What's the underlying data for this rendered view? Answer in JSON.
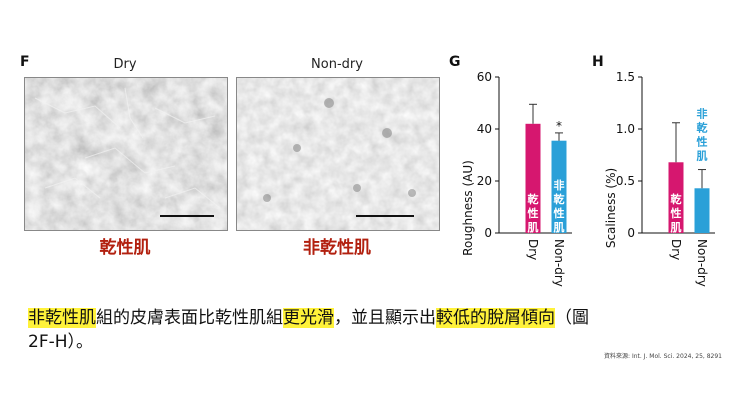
{
  "panels": {
    "f": {
      "letter": "F",
      "left_title": "Dry",
      "right_title": "Non-dry",
      "left_label": "乾性肌",
      "right_label": "非乾性肌"
    },
    "g": {
      "letter": "G"
    },
    "h": {
      "letter": "H"
    }
  },
  "colors": {
    "dry": "#d6176f",
    "nondry": "#2aa0d8",
    "label_red": "#b2200f",
    "highlight": "#fff23a"
  },
  "chart_data": [
    {
      "type": "bar",
      "panel": "G",
      "ylabel": "Roughness (AU)",
      "ylim": [
        0,
        60
      ],
      "yticks": [
        "0",
        "20",
        "40",
        "60"
      ],
      "categories": [
        "Dry",
        "Non-dry"
      ],
      "values": [
        42,
        35.5
      ],
      "errors": [
        7.5,
        3
      ],
      "bar_labels": [
        "乾性肌",
        "非乾性肌"
      ],
      "annotations": [
        "*"
      ]
    },
    {
      "type": "bar",
      "panel": "H",
      "ylabel": "Scaliness (%)",
      "ylim": [
        0,
        1.5
      ],
      "yticks": [
        "0",
        "0.5",
        "1.0",
        "1.5"
      ],
      "categories": [
        "Dry",
        "Non-dry"
      ],
      "values": [
        0.68,
        0.43
      ],
      "errors": [
        0.38,
        0.18
      ],
      "bar_labels": [
        "乾性肌",
        "非乾性肌"
      ]
    }
  ],
  "caption": {
    "p1": "非乾性肌",
    "p2": "組的皮膚表面比乾性肌組",
    "p3": "更光滑",
    "p4": "，並且顯示出",
    "p5": "較低的脫屑傾向",
    "p6": "（圖",
    "p7": "2F-H）。"
  },
  "source": "資料來源: Int. J. Mol. Sci. 2024, 25, 8291"
}
